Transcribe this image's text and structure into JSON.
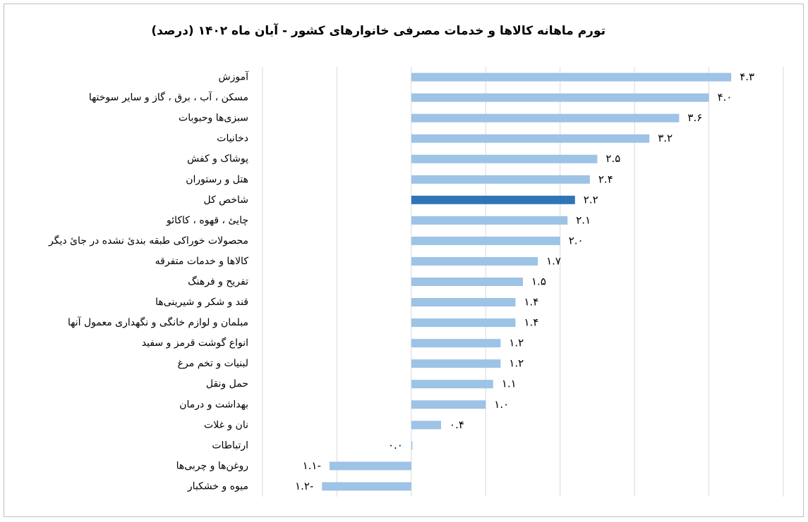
{
  "chart_data": {
    "type": "hbar",
    "title": "تورم ماهانه کالاها و خدمات مصرفی خانوارهای کشور - آبان ماه ۱۴۰۲ (درصد)",
    "categories": [
      "آموزش",
      "مسکن ، آب ، برق ، گاز و سایر سوختها",
      "سبزی‌ها وحبوبات",
      "دخانیات",
      "پوشاک و کفش",
      "هتل و رستوران",
      "شاخص کل",
      "چایئ ، قهوه ، کاکائو",
      "محصولات خوراکی طبقه بندیٔ نشده در جایٔ دیگر",
      "کالاها و خدمات متفرقه",
      "تفریح و فرهنگ",
      "قند و شکر و شیرینی‌ها",
      "مبلمان و لوازم خانگی و نگهداری معمول آنها",
      "انواع گوشت قرمز و سفید",
      "لبنیات و تخم مرغ",
      "حمل ونقل",
      "بهداشت و درمان",
      "نان و غلات",
      "ارتباطات",
      "روغن‌ها و چربی‌ها",
      "میوه و خشکبار"
    ],
    "values": [
      4.3,
      4.0,
      3.6,
      3.2,
      2.5,
      2.4,
      2.2,
      2.1,
      2.0,
      1.7,
      1.5,
      1.4,
      1.4,
      1.2,
      1.2,
      1.1,
      1.0,
      0.4,
      0.0,
      -1.1,
      -1.2
    ],
    "value_labels": [
      "۴.۳",
      "۴.۰",
      "۳.۶",
      "۳.۲",
      "۲.۵",
      "۲.۴",
      "۲.۲",
      "۲.۱",
      "۲.۰",
      "۱.۷",
      "۱.۵",
      "۱.۴",
      "۱.۴",
      "۱.۲",
      "۱.۲",
      "۱.۱",
      "۱.۰",
      "۰.۴",
      "۰.۰",
      "۱.۱-",
      "۱.۲-"
    ],
    "colors": [
      "#9dc3e6",
      "#9dc3e6",
      "#9dc3e6",
      "#9dc3e6",
      "#9dc3e6",
      "#9dc3e6",
      "#2e75b6",
      "#9dc3e6",
      "#9dc3e6",
      "#9dc3e6",
      "#9dc3e6",
      "#9dc3e6",
      "#9dc3e6",
      "#9dc3e6",
      "#9dc3e6",
      "#9dc3e6",
      "#9dc3e6",
      "#9dc3e6",
      "#9dc3e6",
      "#9dc3e6",
      "#9dc3e6"
    ],
    "xlim": [
      -2,
      5
    ],
    "xticks": [
      -2,
      -1,
      0,
      1,
      2,
      3,
      4,
      5
    ],
    "grid": true
  }
}
